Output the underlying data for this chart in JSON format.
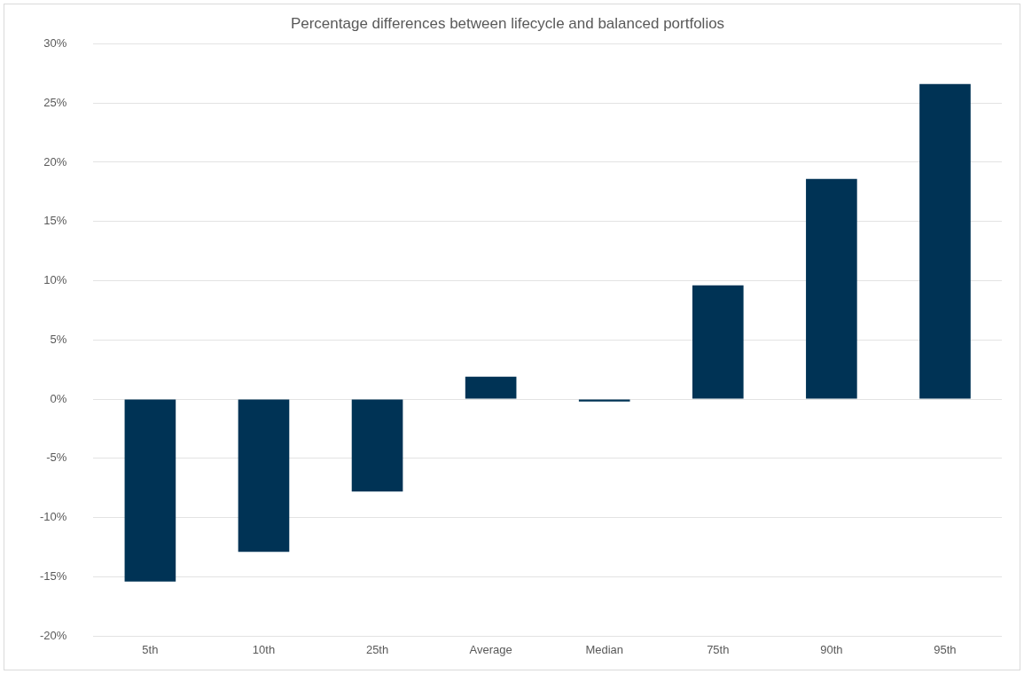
{
  "chart_data": {
    "type": "bar",
    "title": "Percentage differences between lifecycle and balanced portfolios",
    "categories": [
      "5th",
      "10th",
      "25th",
      "Average",
      "Median",
      "75th",
      "90th",
      "95th"
    ],
    "values": [
      -15.4,
      -12.9,
      -7.8,
      1.9,
      -0.2,
      9.6,
      18.6,
      26.6
    ],
    "color": "#003355",
    "ylim": [
      -20,
      30
    ],
    "yticks": [
      {
        "value": -20,
        "label": "-20%"
      },
      {
        "value": -15,
        "label": "-15%"
      },
      {
        "value": -10,
        "label": "-10%"
      },
      {
        "value": -5,
        "label": "-5%"
      },
      {
        "value": 0,
        "label": "0%"
      },
      {
        "value": 5,
        "label": "5%"
      },
      {
        "value": 10,
        "label": "10%"
      },
      {
        "value": 15,
        "label": "15%"
      },
      {
        "value": 20,
        "label": "20%"
      },
      {
        "value": 25,
        "label": "25%"
      },
      {
        "value": 30,
        "label": "30%"
      }
    ],
    "grid": "y"
  }
}
